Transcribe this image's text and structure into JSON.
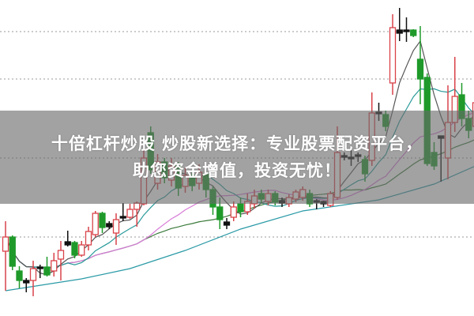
{
  "overlay": {
    "title_line1": "十倍杠杆炒股 炒股新选择：专业股票配资平台，",
    "title_line2": "助您资金增值，投资无忧！"
  },
  "chart_data": {
    "type": "candlestick",
    "title": "",
    "xlabel": "",
    "ylabel": "",
    "ylim": [
      0,
      100
    ],
    "grid": "horizontal-dotted",
    "gridlines": [
      25,
      50,
      75,
      90
    ],
    "colors": {
      "up": "#d9434a",
      "down": "#1f9a2a",
      "doji": "#111111",
      "grid": "#999999",
      "ma_fast": "#555555",
      "ma_mid": "#2a9a9a",
      "ma_slow": "#d77ad7",
      "ma_long": "#3a7a3a",
      "ma_base": "#2a9aa6"
    },
    "candles": [
      [
        20.5,
        25,
        30,
        8
      ],
      [
        25,
        15.75,
        25.5,
        14.5
      ],
      [
        14.25,
        11.25,
        15.75,
        8.75
      ],
      [
        11.25,
        10.5,
        12,
        7.5
      ],
      [
        11.25,
        15,
        17.5,
        6.25
      ],
      [
        15,
        15.5,
        16.25,
        12
      ],
      [
        15.5,
        13,
        18.75,
        12.5
      ],
      [
        14.25,
        17.5,
        20,
        12.5
      ],
      [
        18,
        20.75,
        23.75,
        11.25
      ],
      [
        22.5,
        23.5,
        27,
        22
      ],
      [
        23.25,
        19.25,
        23.75,
        18.25
      ],
      [
        19.25,
        22.5,
        23.75,
        18.75
      ],
      [
        22.5,
        26.75,
        28.25,
        20.75
      ],
      [
        25.75,
        32.5,
        33.25,
        25
      ],
      [
        32.5,
        28,
        33,
        26.25
      ],
      [
        29.25,
        28.25,
        30,
        27.5
      ],
      [
        26.25,
        30.5,
        32.5,
        22.5
      ],
      [
        31,
        31.5,
        35.75,
        30
      ],
      [
        31.25,
        33.75,
        35.5,
        30.75
      ],
      [
        33.75,
        35.75,
        36.25,
        28.25
      ],
      [
        35.5,
        50,
        55,
        35
      ],
      [
        58,
        46.25,
        60,
        45
      ],
      [
        42,
        48.75,
        51.25,
        40
      ],
      [
        48.75,
        43.75,
        50,
        42
      ],
      [
        43,
        47.5,
        50,
        41
      ],
      [
        47.5,
        40.5,
        48.75,
        38
      ],
      [
        41,
        44.5,
        47,
        39
      ],
      [
        44.5,
        41.25,
        46,
        39.5
      ],
      [
        42,
        45.5,
        48,
        40
      ],
      [
        45,
        40,
        46.5,
        37.5
      ],
      [
        40,
        34.5,
        41,
        32
      ],
      [
        34.5,
        30.5,
        37.5,
        27.5
      ],
      [
        29.75,
        28.75,
        31,
        27.5
      ],
      [
        31.25,
        34.5,
        36.25,
        30
      ],
      [
        35.5,
        33,
        37.5,
        31.25
      ],
      [
        33,
        36.25,
        38.75,
        32
      ],
      [
        35.5,
        38,
        40,
        34
      ],
      [
        38.75,
        37,
        40,
        35.5
      ],
      [
        36.25,
        38.75,
        40,
        35
      ],
      [
        38.75,
        36,
        39.5,
        35
      ],
      [
        36.5,
        35.75,
        37.5,
        34.5
      ],
      [
        35.5,
        37.5,
        38.5,
        34.5
      ],
      [
        37,
        39.25,
        40,
        36
      ],
      [
        37.5,
        40,
        41,
        36.5
      ],
      [
        38.75,
        35.5,
        40,
        34.5
      ],
      [
        36.5,
        36,
        37,
        33.75
      ],
      [
        35.5,
        36.25,
        36.5,
        34.5
      ],
      [
        35,
        38.75,
        39.5,
        34.5
      ],
      [
        37.5,
        51.75,
        60,
        36.75
      ],
      [
        50.75,
        50.25,
        51.75,
        49.25
      ],
      [
        50.25,
        49.75,
        52.5,
        47.5
      ],
      [
        51,
        50.5,
        51.75,
        48.75
      ],
      [
        49.5,
        45,
        50.75,
        42.5
      ],
      [
        49.25,
        64.25,
        70.75,
        47.5
      ],
      [
        64.5,
        64,
        67.5,
        61.75
      ],
      [
        63.75,
        60,
        65,
        58.5
      ],
      [
        73.75,
        91.25,
        95.5,
        70
      ],
      [
        90.5,
        89.5,
        97.5,
        87
      ],
      [
        90.25,
        90.5,
        94.5,
        86.75
      ],
      [
        90.5,
        88.75,
        90.75,
        88.25
      ],
      [
        81.25,
        75,
        91.75,
        67
      ],
      [
        75.5,
        48.25,
        76.75,
        47.5
      ],
      [
        51.75,
        47.5,
        55,
        46.25
      ],
      [
        57,
        56.25,
        57,
        42.5
      ],
      [
        50,
        61.25,
        73,
        43.25
      ],
      [
        61.25,
        69.5,
        82,
        58.25
      ],
      [
        70,
        62.5,
        73.75,
        60
      ],
      [
        62.5,
        58.75,
        65,
        56.25
      ],
      [
        60,
        67.5,
        80,
        57.5
      ]
    ],
    "base_line": [
      [
        0,
        8
      ],
      [
        11,
        11.75
      ],
      [
        18,
        15
      ],
      [
        26,
        20.75
      ],
      [
        34,
        27.5
      ],
      [
        43,
        33.25
      ],
      [
        54,
        36.75
      ],
      [
        62,
        41.75
      ],
      [
        68,
        47.5
      ]
    ]
  }
}
